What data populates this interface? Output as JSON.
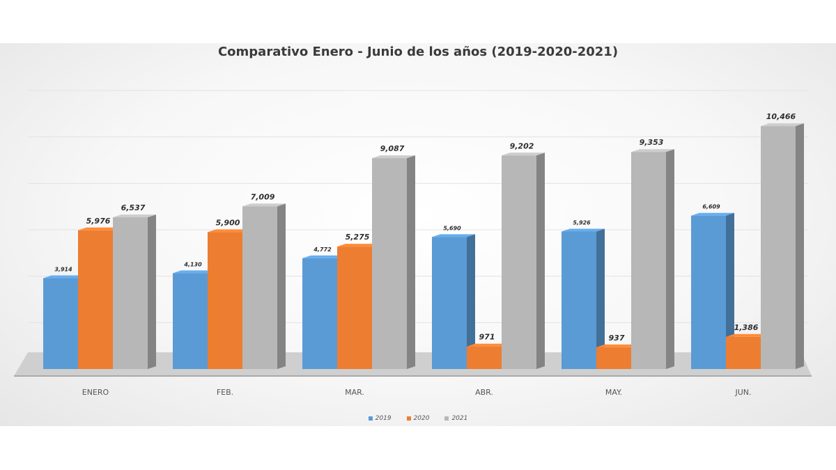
{
  "chart_data": {
    "type": "bar",
    "title": "Comparativo Enero - Junio de los años (2019-2020-2021)",
    "categories": [
      "ENERO",
      "FEB.",
      "MAR.",
      "ABR.",
      "MAY.",
      "JUN."
    ],
    "series": [
      {
        "name": "2019",
        "color": "#5b9bd5",
        "values": [
          3914,
          4130,
          4772,
          5690,
          5926,
          6609
        ],
        "labels": [
          "3,914",
          "4,130",
          "4,772",
          "5,690",
          "5,926",
          "6,609"
        ]
      },
      {
        "name": "2020",
        "color": "#ed7d31",
        "values": [
          5976,
          5900,
          5275,
          971,
          937,
          1386
        ],
        "labels": [
          "5,976",
          "5,900",
          "5,275",
          "971",
          "937",
          "1,386"
        ]
      },
      {
        "name": "2021",
        "color": "#b7b7b7",
        "values": [
          6537,
          7009,
          9087,
          9202,
          9353,
          10466
        ],
        "labels": [
          "6,537",
          "7,009",
          "9,087",
          "9,202",
          "9,353",
          "10,466"
        ]
      }
    ],
    "xlabel": "",
    "ylabel": "",
    "ylim": [
      0,
      12000
    ],
    "grid": true,
    "legend_position": "bottom",
    "style": "3d-column"
  }
}
